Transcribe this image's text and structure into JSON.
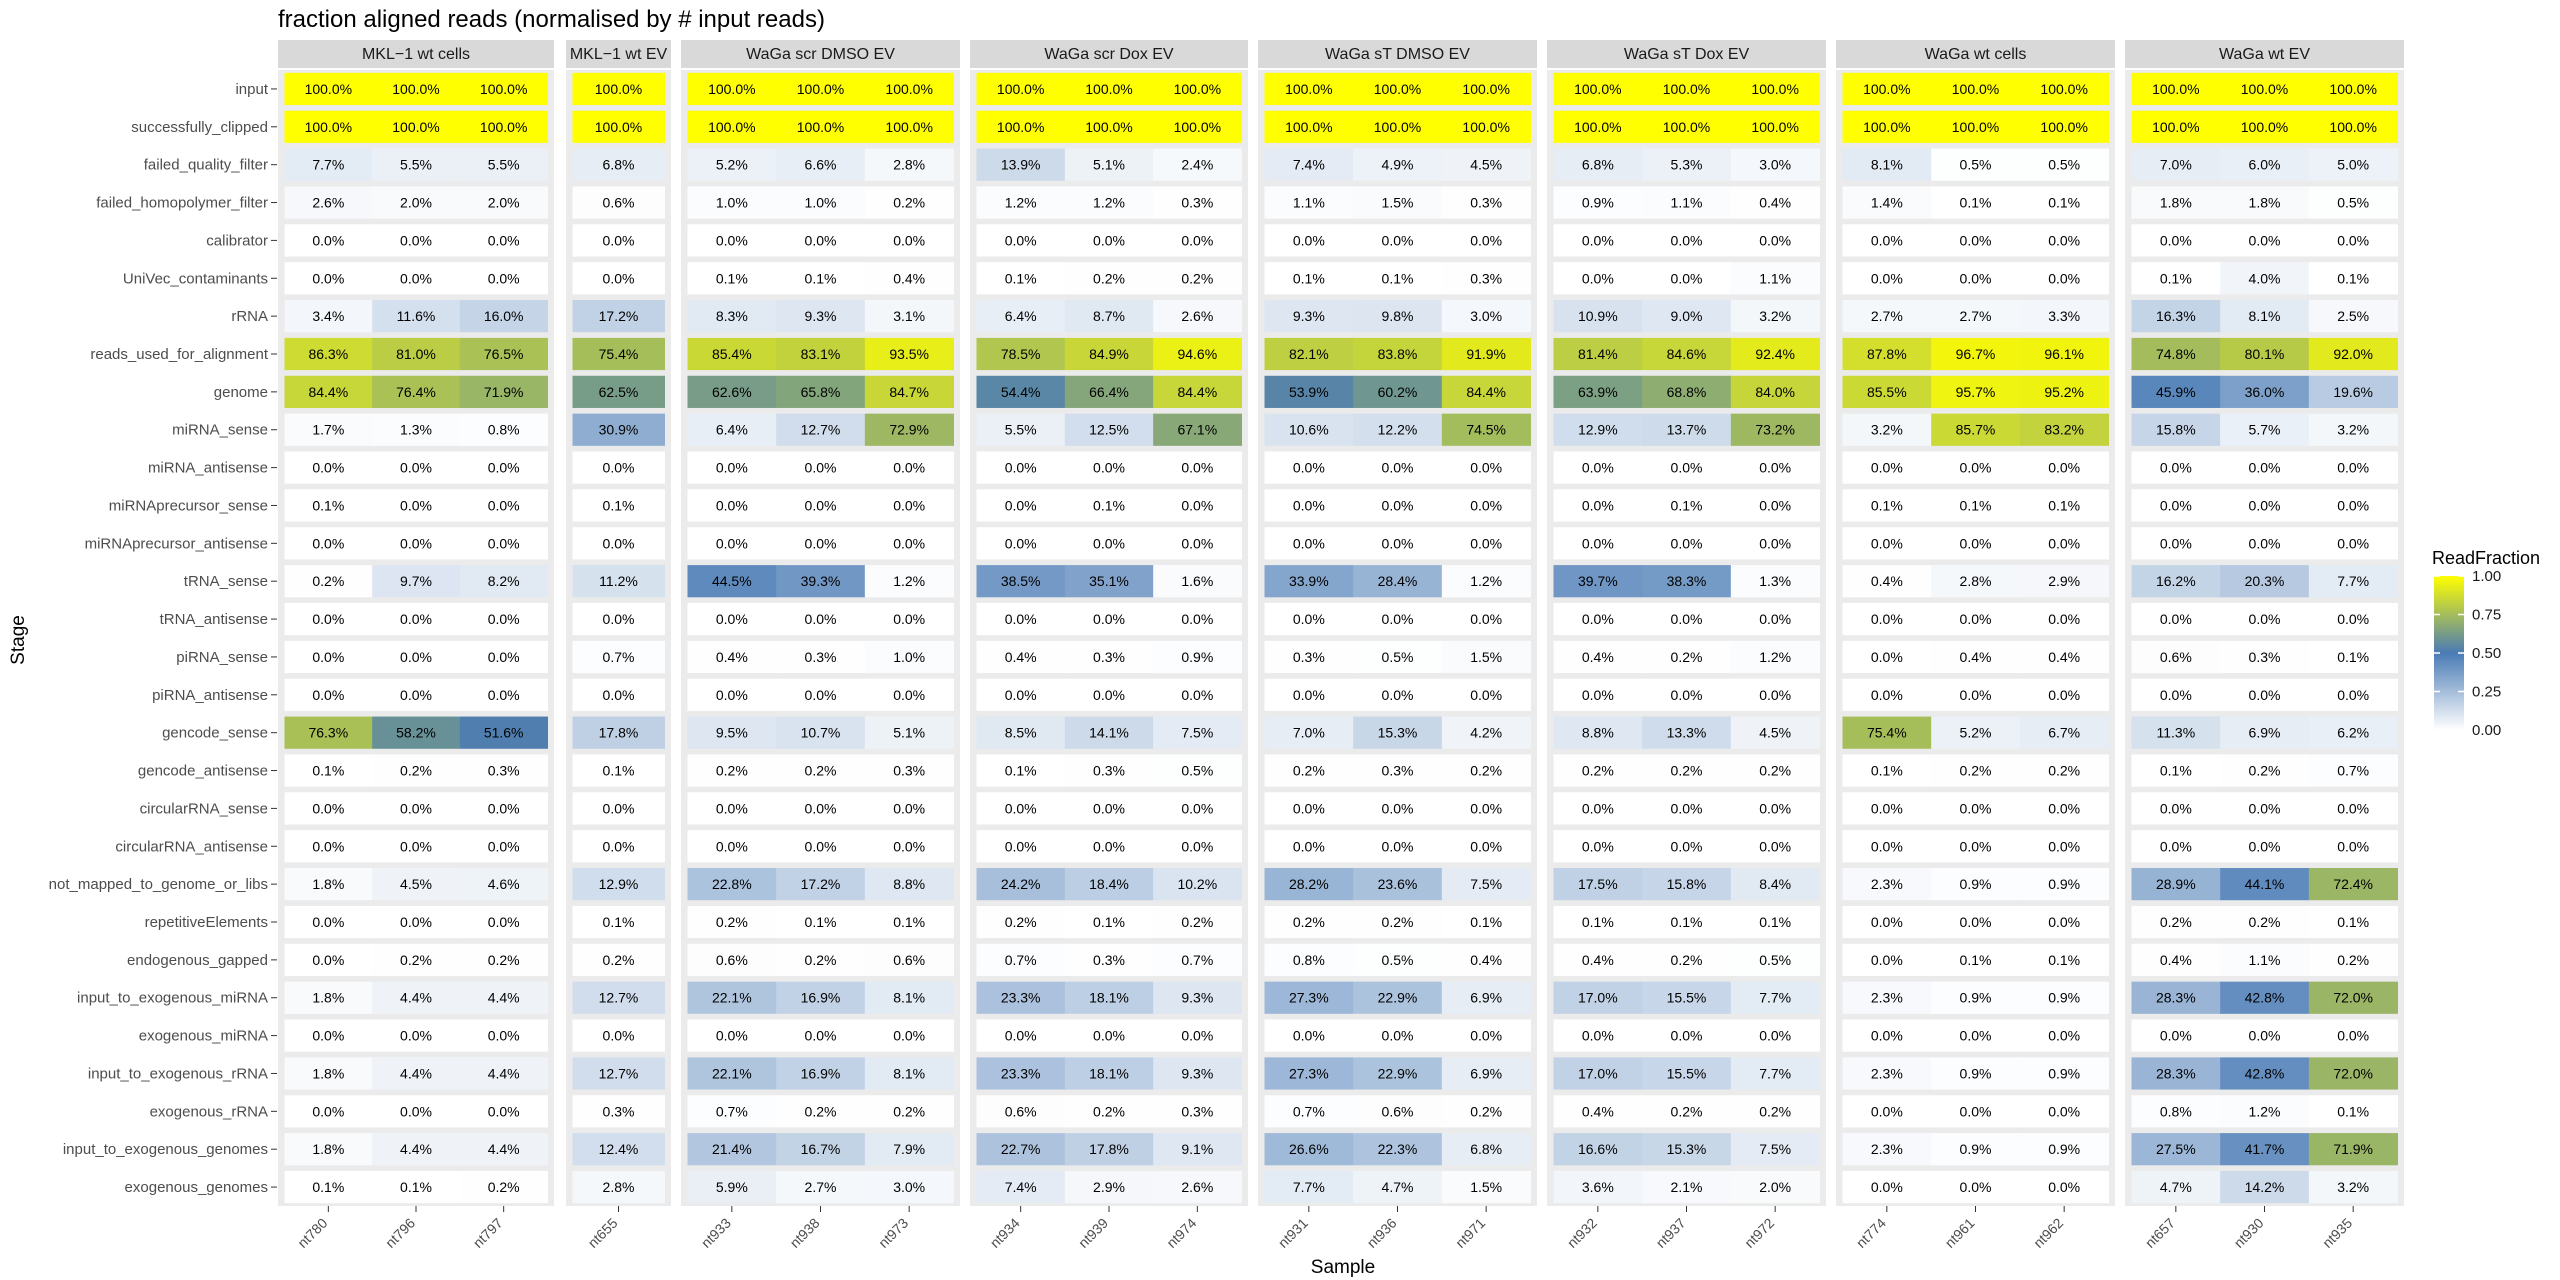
{
  "chart_data": {
    "type": "heatmap",
    "title": "fraction aligned reads (normalised by # input reads)",
    "xlabel": "Sample",
    "ylabel": "Stage",
    "legend": {
      "title": "ReadFraction",
      "ticks": [
        "1.00",
        "0.75",
        "0.50",
        "0.25",
        "0.00"
      ],
      "position": "right"
    },
    "color_scale": {
      "low": "#ffffff",
      "mid": "#4a7bb5",
      "high": "#ffff00",
      "midpoint": 0.5
    },
    "stages": [
      "input",
      "successfully_clipped",
      "failed_quality_filter",
      "failed_homopolymer_filter",
      "calibrator",
      "UniVec_contaminants",
      "rRNA",
      "reads_used_for_alignment",
      "genome",
      "miRNA_sense",
      "miRNA_antisense",
      "miRNAprecursor_sense",
      "miRNAprecursor_antisense",
      "tRNA_sense",
      "tRNA_antisense",
      "piRNA_sense",
      "piRNA_antisense",
      "gencode_sense",
      "gencode_antisense",
      "circularRNA_sense",
      "circularRNA_antisense",
      "not_mapped_to_genome_or_libs",
      "repetitiveElements",
      "endogenous_gapped",
      "input_to_exogenous_miRNA",
      "exogenous_miRNA",
      "input_to_exogenous_rRNA",
      "exogenous_rRNA",
      "input_to_exogenous_genomes",
      "exogenous_genomes"
    ],
    "panels": [
      {
        "name": "MKL−1 wt cells",
        "samples": [
          "nt780",
          "nt796",
          "nt797"
        ],
        "values": [
          [
            100.0,
            100.0,
            100.0
          ],
          [
            100.0,
            100.0,
            100.0
          ],
          [
            7.7,
            5.5,
            5.5
          ],
          [
            2.6,
            2.0,
            2.0
          ],
          [
            0.0,
            0.0,
            0.0
          ],
          [
            0.0,
            0.0,
            0.0
          ],
          [
            3.4,
            11.6,
            16.0
          ],
          [
            86.3,
            81.0,
            76.5
          ],
          [
            84.4,
            76.4,
            71.9
          ],
          [
            1.7,
            1.3,
            0.8
          ],
          [
            0.0,
            0.0,
            0.0
          ],
          [
            0.1,
            0.0,
            0.0
          ],
          [
            0.0,
            0.0,
            0.0
          ],
          [
            0.2,
            9.7,
            8.2
          ],
          [
            0.0,
            0.0,
            0.0
          ],
          [
            0.0,
            0.0,
            0.0
          ],
          [
            0.0,
            0.0,
            0.0
          ],
          [
            76.3,
            58.2,
            51.6
          ],
          [
            0.1,
            0.2,
            0.3
          ],
          [
            0.0,
            0.0,
            0.0
          ],
          [
            0.0,
            0.0,
            0.0
          ],
          [
            1.8,
            4.5,
            4.6
          ],
          [
            0.0,
            0.0,
            0.0
          ],
          [
            0.0,
            0.2,
            0.2
          ],
          [
            1.8,
            4.4,
            4.4
          ],
          [
            0.0,
            0.0,
            0.0
          ],
          [
            1.8,
            4.4,
            4.4
          ],
          [
            0.0,
            0.0,
            0.0
          ],
          [
            1.8,
            4.4,
            4.4
          ],
          [
            0.1,
            0.1,
            0.2
          ]
        ]
      },
      {
        "name": "MKL−1 wt EV",
        "samples": [
          "nt655"
        ],
        "values": [
          [
            100.0
          ],
          [
            100.0
          ],
          [
            6.8
          ],
          [
            0.6
          ],
          [
            0.0
          ],
          [
            0.0
          ],
          [
            17.2
          ],
          [
            75.4
          ],
          [
            62.5
          ],
          [
            30.9
          ],
          [
            0.0
          ],
          [
            0.1
          ],
          [
            0.0
          ],
          [
            11.2
          ],
          [
            0.0
          ],
          [
            0.7
          ],
          [
            0.0
          ],
          [
            17.8
          ],
          [
            0.1
          ],
          [
            0.0
          ],
          [
            0.0
          ],
          [
            12.9
          ],
          [
            0.1
          ],
          [
            0.2
          ],
          [
            12.7
          ],
          [
            0.0
          ],
          [
            12.7
          ],
          [
            0.3
          ],
          [
            12.4
          ],
          [
            2.8
          ]
        ]
      },
      {
        "name": "WaGa scr DMSO EV",
        "samples": [
          "nt933",
          "nt938",
          "nt973"
        ],
        "values": [
          [
            100.0,
            100.0,
            100.0
          ],
          [
            100.0,
            100.0,
            100.0
          ],
          [
            5.2,
            6.6,
            2.8
          ],
          [
            1.0,
            1.0,
            0.2
          ],
          [
            0.0,
            0.0,
            0.0
          ],
          [
            0.1,
            0.1,
            0.4
          ],
          [
            8.3,
            9.3,
            3.1
          ],
          [
            85.4,
            83.1,
            93.5
          ],
          [
            62.6,
            65.8,
            84.7
          ],
          [
            6.4,
            12.7,
            72.9
          ],
          [
            0.0,
            0.0,
            0.0
          ],
          [
            0.0,
            0.0,
            0.0
          ],
          [
            0.0,
            0.0,
            0.0
          ],
          [
            44.5,
            39.3,
            1.2
          ],
          [
            0.0,
            0.0,
            0.0
          ],
          [
            0.4,
            0.3,
            1.0
          ],
          [
            0.0,
            0.0,
            0.0
          ],
          [
            9.5,
            10.7,
            5.1
          ],
          [
            0.2,
            0.2,
            0.3
          ],
          [
            0.0,
            0.0,
            0.0
          ],
          [
            0.0,
            0.0,
            0.0
          ],
          [
            22.8,
            17.2,
            8.8
          ],
          [
            0.2,
            0.1,
            0.1
          ],
          [
            0.6,
            0.2,
            0.6
          ],
          [
            22.1,
            16.9,
            8.1
          ],
          [
            0.0,
            0.0,
            0.0
          ],
          [
            22.1,
            16.9,
            8.1
          ],
          [
            0.7,
            0.2,
            0.2
          ],
          [
            21.4,
            16.7,
            7.9
          ],
          [
            5.9,
            2.7,
            3.0
          ]
        ]
      },
      {
        "name": "WaGa scr Dox EV",
        "samples": [
          "nt934",
          "nt939",
          "nt974"
        ],
        "values": [
          [
            100.0,
            100.0,
            100.0
          ],
          [
            100.0,
            100.0,
            100.0
          ],
          [
            13.9,
            5.1,
            2.4
          ],
          [
            1.2,
            1.2,
            0.3
          ],
          [
            0.0,
            0.0,
            0.0
          ],
          [
            0.1,
            0.2,
            0.2
          ],
          [
            6.4,
            8.7,
            2.6
          ],
          [
            78.5,
            84.9,
            94.6
          ],
          [
            54.4,
            66.4,
            84.4
          ],
          [
            5.5,
            12.5,
            67.1
          ],
          [
            0.0,
            0.0,
            0.0
          ],
          [
            0.0,
            0.1,
            0.0
          ],
          [
            0.0,
            0.0,
            0.0
          ],
          [
            38.5,
            35.1,
            1.6
          ],
          [
            0.0,
            0.0,
            0.0
          ],
          [
            0.4,
            0.3,
            0.9
          ],
          [
            0.0,
            0.0,
            0.0
          ],
          [
            8.5,
            14.1,
            7.5
          ],
          [
            0.1,
            0.3,
            0.5
          ],
          [
            0.0,
            0.0,
            0.0
          ],
          [
            0.0,
            0.0,
            0.0
          ],
          [
            24.2,
            18.4,
            10.2
          ],
          [
            0.2,
            0.1,
            0.2
          ],
          [
            0.7,
            0.3,
            0.7
          ],
          [
            23.3,
            18.1,
            9.3
          ],
          [
            0.0,
            0.0,
            0.0
          ],
          [
            23.3,
            18.1,
            9.3
          ],
          [
            0.6,
            0.2,
            0.3
          ],
          [
            22.7,
            17.8,
            9.1
          ],
          [
            7.4,
            2.9,
            2.6
          ]
        ]
      },
      {
        "name": "WaGa sT DMSO EV",
        "samples": [
          "nt931",
          "nt936",
          "nt971"
        ],
        "values": [
          [
            100.0,
            100.0,
            100.0
          ],
          [
            100.0,
            100.0,
            100.0
          ],
          [
            7.4,
            4.9,
            4.5
          ],
          [
            1.1,
            1.5,
            0.3
          ],
          [
            0.0,
            0.0,
            0.0
          ],
          [
            0.1,
            0.1,
            0.3
          ],
          [
            9.3,
            9.8,
            3.0
          ],
          [
            82.1,
            83.8,
            91.9
          ],
          [
            53.9,
            60.2,
            84.4
          ],
          [
            10.6,
            12.2,
            74.5
          ],
          [
            0.0,
            0.0,
            0.0
          ],
          [
            0.0,
            0.0,
            0.0
          ],
          [
            0.0,
            0.0,
            0.0
          ],
          [
            33.9,
            28.4,
            1.2
          ],
          [
            0.0,
            0.0,
            0.0
          ],
          [
            0.3,
            0.5,
            1.5
          ],
          [
            0.0,
            0.0,
            0.0
          ],
          [
            7.0,
            15.3,
            4.2
          ],
          [
            0.2,
            0.3,
            0.2
          ],
          [
            0.0,
            0.0,
            0.0
          ],
          [
            0.0,
            0.0,
            0.0
          ],
          [
            28.2,
            23.6,
            7.5
          ],
          [
            0.2,
            0.2,
            0.1
          ],
          [
            0.8,
            0.5,
            0.4
          ],
          [
            27.3,
            22.9,
            6.9
          ],
          [
            0.0,
            0.0,
            0.0
          ],
          [
            27.3,
            22.9,
            6.9
          ],
          [
            0.7,
            0.6,
            0.2
          ],
          [
            26.6,
            22.3,
            6.8
          ],
          [
            7.7,
            4.7,
            1.5
          ]
        ]
      },
      {
        "name": "WaGa sT Dox EV",
        "samples": [
          "nt932",
          "nt937",
          "nt972"
        ],
        "values": [
          [
            100.0,
            100.0,
            100.0
          ],
          [
            100.0,
            100.0,
            100.0
          ],
          [
            6.8,
            5.3,
            3.0
          ],
          [
            0.9,
            1.1,
            0.4
          ],
          [
            0.0,
            0.0,
            0.0
          ],
          [
            0.0,
            0.0,
            1.1
          ],
          [
            10.9,
            9.0,
            3.2
          ],
          [
            81.4,
            84.6,
            92.4
          ],
          [
            63.9,
            68.8,
            84.0
          ],
          [
            12.9,
            13.7,
            73.2
          ],
          [
            0.0,
            0.0,
            0.0
          ],
          [
            0.0,
            0.1,
            0.0
          ],
          [
            0.0,
            0.0,
            0.0
          ],
          [
            39.7,
            38.3,
            1.3
          ],
          [
            0.0,
            0.0,
            0.0
          ],
          [
            0.4,
            0.2,
            1.2
          ],
          [
            0.0,
            0.0,
            0.0
          ],
          [
            8.8,
            13.3,
            4.5
          ],
          [
            0.2,
            0.2,
            0.2
          ],
          [
            0.0,
            0.0,
            0.0
          ],
          [
            0.0,
            0.0,
            0.0
          ],
          [
            17.5,
            15.8,
            8.4
          ],
          [
            0.1,
            0.1,
            0.1
          ],
          [
            0.4,
            0.2,
            0.5
          ],
          [
            17.0,
            15.5,
            7.7
          ],
          [
            0.0,
            0.0,
            0.0
          ],
          [
            17.0,
            15.5,
            7.7
          ],
          [
            0.4,
            0.2,
            0.2
          ],
          [
            16.6,
            15.3,
            7.5
          ],
          [
            3.6,
            2.1,
            2.0
          ]
        ]
      },
      {
        "name": "WaGa wt cells",
        "samples": [
          "nt774",
          "nt961",
          "nt962"
        ],
        "values": [
          [
            100.0,
            100.0,
            100.0
          ],
          [
            100.0,
            100.0,
            100.0
          ],
          [
            8.1,
            0.5,
            0.5
          ],
          [
            1.4,
            0.1,
            0.1
          ],
          [
            0.0,
            0.0,
            0.0
          ],
          [
            0.0,
            0.0,
            0.0
          ],
          [
            2.7,
            2.7,
            3.3
          ],
          [
            87.8,
            96.7,
            96.1
          ],
          [
            85.5,
            95.7,
            95.2
          ],
          [
            3.2,
            85.7,
            83.2
          ],
          [
            0.0,
            0.0,
            0.0
          ],
          [
            0.1,
            0.1,
            0.1
          ],
          [
            0.0,
            0.0,
            0.0
          ],
          [
            0.4,
            2.8,
            2.9
          ],
          [
            0.0,
            0.0,
            0.0
          ],
          [
            0.0,
            0.4,
            0.4
          ],
          [
            0.0,
            0.0,
            0.0
          ],
          [
            75.4,
            5.2,
            6.7
          ],
          [
            0.1,
            0.2,
            0.2
          ],
          [
            0.0,
            0.0,
            0.0
          ],
          [
            0.0,
            0.0,
            0.0
          ],
          [
            2.3,
            0.9,
            0.9
          ],
          [
            0.0,
            0.0,
            0.0
          ],
          [
            0.0,
            0.1,
            0.1
          ],
          [
            2.3,
            0.9,
            0.9
          ],
          [
            0.0,
            0.0,
            0.0
          ],
          [
            2.3,
            0.9,
            0.9
          ],
          [
            0.0,
            0.0,
            0.0
          ],
          [
            2.3,
            0.9,
            0.9
          ],
          [
            0.0,
            0.0,
            0.0
          ]
        ]
      },
      {
        "name": "WaGa wt EV",
        "samples": [
          "nt657",
          "nt930",
          "nt935"
        ],
        "values": [
          [
            100.0,
            100.0,
            100.0
          ],
          [
            100.0,
            100.0,
            100.0
          ],
          [
            7.0,
            6.0,
            5.0
          ],
          [
            1.8,
            1.8,
            0.5
          ],
          [
            0.0,
            0.0,
            0.0
          ],
          [
            0.1,
            4.0,
            0.1
          ],
          [
            16.3,
            8.1,
            2.5
          ],
          [
            74.8,
            80.1,
            92.0
          ],
          [
            45.9,
            36.0,
            19.6
          ],
          [
            15.8,
            5.7,
            3.2
          ],
          [
            0.0,
            0.0,
            0.0
          ],
          [
            0.0,
            0.0,
            0.0
          ],
          [
            0.0,
            0.0,
            0.0
          ],
          [
            16.2,
            20.3,
            7.7
          ],
          [
            0.0,
            0.0,
            0.0
          ],
          [
            0.6,
            0.3,
            0.1
          ],
          [
            0.0,
            0.0,
            0.0
          ],
          [
            11.3,
            6.9,
            6.2
          ],
          [
            0.1,
            0.2,
            0.7
          ],
          [
            0.0,
            0.0,
            0.0
          ],
          [
            0.0,
            0.0,
            0.0
          ],
          [
            28.9,
            44.1,
            72.4
          ],
          [
            0.2,
            0.2,
            0.1
          ],
          [
            0.4,
            1.1,
            0.2
          ],
          [
            28.3,
            42.8,
            72.0
          ],
          [
            0.0,
            0.0,
            0.0
          ],
          [
            28.3,
            42.8,
            72.0
          ],
          [
            0.8,
            1.2,
            0.1
          ],
          [
            27.5,
            41.7,
            71.9
          ],
          [
            4.7,
            14.2,
            3.2
          ]
        ]
      }
    ]
  }
}
